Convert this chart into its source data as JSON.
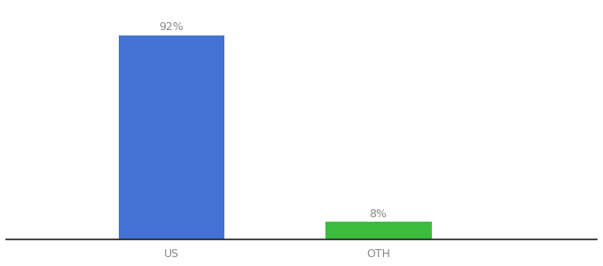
{
  "categories": [
    "US",
    "OTH"
  ],
  "values": [
    92,
    8
  ],
  "bar_colors": [
    "#4472d4",
    "#3dbb3d"
  ],
  "label_texts": [
    "92%",
    "8%"
  ],
  "background_color": "#ffffff",
  "label_color": "#888888",
  "tick_color": "#888888",
  "bar_width": 0.18,
  "x_positions": [
    0.28,
    0.63
  ],
  "ylim": [
    0,
    105
  ],
  "xlim": [
    0.0,
    1.0
  ],
  "label_fontsize": 9,
  "tick_fontsize": 9
}
